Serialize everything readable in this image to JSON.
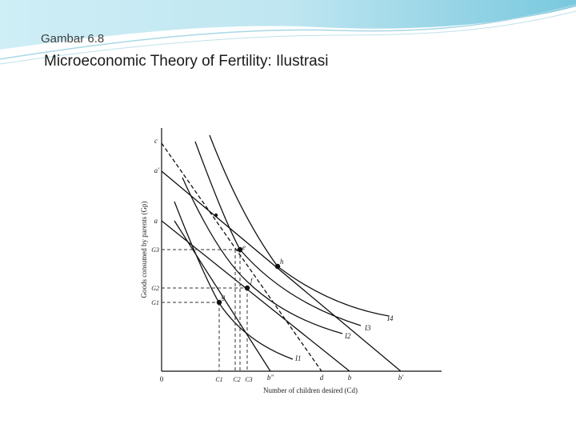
{
  "slide": {
    "kicker": "Gambar 6.8",
    "title": "Microeconomic Theory of Fertility: Ilustrasi"
  },
  "figure": {
    "y_axis_label": "Goods consumed by parents (Gp)",
    "x_axis_label": "Number of children desired (Cd)",
    "origin_label": "0",
    "y_points": {
      "c": "c",
      "a_prime": "a'",
      "a": "a"
    },
    "y_ticks": {
      "g3": "G3",
      "g2": "G2",
      "g1": "G1"
    },
    "x_ticks": {
      "c1": "C1",
      "c2": "C2",
      "c3": "C3",
      "b_dprime": "b\"",
      "d": "d",
      "b": "b",
      "b_prime": "b'"
    },
    "points": {
      "e": "e",
      "f": "f",
      "g": "g",
      "h": "h"
    },
    "curves": {
      "i1": "I1",
      "i2": "I2",
      "i3": "I3",
      "i4": "I4"
    },
    "colors": {
      "line": "#111111",
      "dashed": "#333333"
    }
  }
}
